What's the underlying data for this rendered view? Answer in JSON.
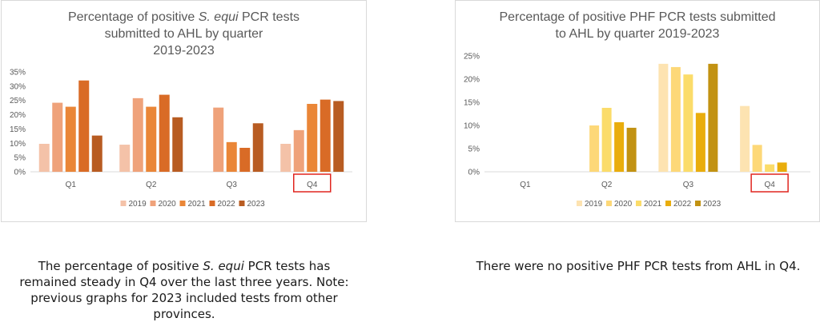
{
  "chart_data": [
    {
      "type": "bar",
      "title": {
        "line1_a": "Percentage of positive ",
        "line1_italic": "S. equi",
        "line1_b": " PCR tests",
        "line2": "submitted to AHL by quarter",
        "line3": "2019-2023"
      },
      "categories": [
        "Q1",
        "Q2",
        "Q3",
        "Q4"
      ],
      "series": [
        {
          "name": "2019",
          "color": "#f4c2a8",
          "values": [
            9.8,
            9.5,
            0,
            9.8
          ]
        },
        {
          "name": "2020",
          "color": "#efa27a",
          "values": [
            24.2,
            25.8,
            22.5,
            14.6
          ]
        },
        {
          "name": "2021",
          "color": "#ea8637",
          "values": [
            22.8,
            22.8,
            10.4,
            23.8
          ]
        },
        {
          "name": "2022",
          "color": "#d96b26",
          "values": [
            32.0,
            27.0,
            8.4,
            25.3
          ]
        },
        {
          "name": "2023",
          "color": "#b85c22",
          "values": [
            12.7,
            19.1,
            17.0,
            24.8
          ]
        }
      ],
      "ylim": [
        0,
        35
      ],
      "yticks": [
        "0%",
        "5%",
        "10%",
        "15%",
        "20%",
        "25%",
        "30%",
        "35%"
      ],
      "grid": false,
      "legend": "bottom",
      "highlight_category": "Q4",
      "highlight_color": "#e0251f"
    },
    {
      "type": "bar",
      "title": {
        "line1": "Percentage of positive PHF PCR tests submitted",
        "line2": "to AHL by quarter 2019-2023"
      },
      "categories": [
        "Q1",
        "Q2",
        "Q3",
        "Q4"
      ],
      "series": [
        {
          "name": "2019",
          "color": "#fde3b1",
          "values": [
            0,
            0,
            23.3,
            14.2
          ]
        },
        {
          "name": "2020",
          "color": "#fdd878",
          "values": [
            0,
            10.0,
            22.6,
            5.8
          ]
        },
        {
          "name": "2021",
          "color": "#fbdc6a",
          "values": [
            0,
            13.8,
            21.0,
            1.6
          ]
        },
        {
          "name": "2022",
          "color": "#e9ad0c",
          "values": [
            0,
            10.7,
            12.7,
            2.0
          ]
        },
        {
          "name": "2023",
          "color": "#c29212",
          "values": [
            0,
            9.5,
            23.3,
            0
          ]
        }
      ],
      "ylim": [
        0,
        25
      ],
      "yticks": [
        "0%",
        "5%",
        "10%",
        "15%",
        "20%",
        "25%"
      ],
      "grid": false,
      "legend": "bottom",
      "highlight_category": "Q4",
      "highlight_color": "#e0251f"
    }
  ],
  "captions": {
    "left_a": "The percentage of positive ",
    "left_italic": "S. equi",
    "left_b": " PCR tests has remained steady in Q4 over the last three years. Note: previous graphs for 2023 included tests from other provinces.",
    "right": "There were no positive PHF PCR tests from AHL in Q4."
  }
}
